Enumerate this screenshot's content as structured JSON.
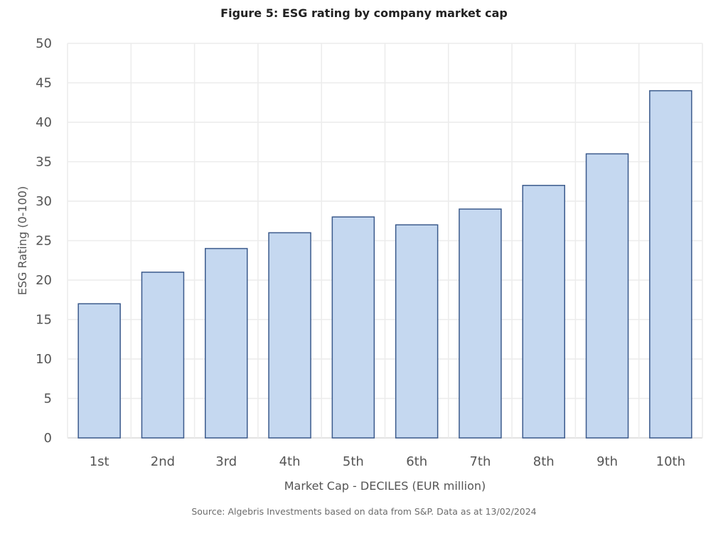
{
  "chart_data": {
    "type": "bar",
    "title": "Figure 5: ESG rating by company market cap",
    "xlabel": "Market Cap - DECILES (EUR million)",
    "ylabel": "ESG Rating (0-100)",
    "categories": [
      "1st",
      "2nd",
      "3rd",
      "4th",
      "5th",
      "6th",
      "7th",
      "8th",
      "9th",
      "10th"
    ],
    "values": [
      17,
      21,
      24,
      26,
      28,
      27,
      29,
      32,
      36,
      44
    ],
    "ylim": [
      0,
      50
    ],
    "yticks": [
      "0",
      "5",
      "10",
      "15",
      "20",
      "25",
      "30",
      "35",
      "40",
      "45",
      "50"
    ],
    "grid": true,
    "legend": "none",
    "colors": {
      "bar_fill": "#c5d8f0",
      "bar_stroke": "#3b5a8c",
      "grid": "#ececec"
    },
    "source": "Source: Algebris Investments based on data from S&P. Data as at 13/02/2024"
  }
}
